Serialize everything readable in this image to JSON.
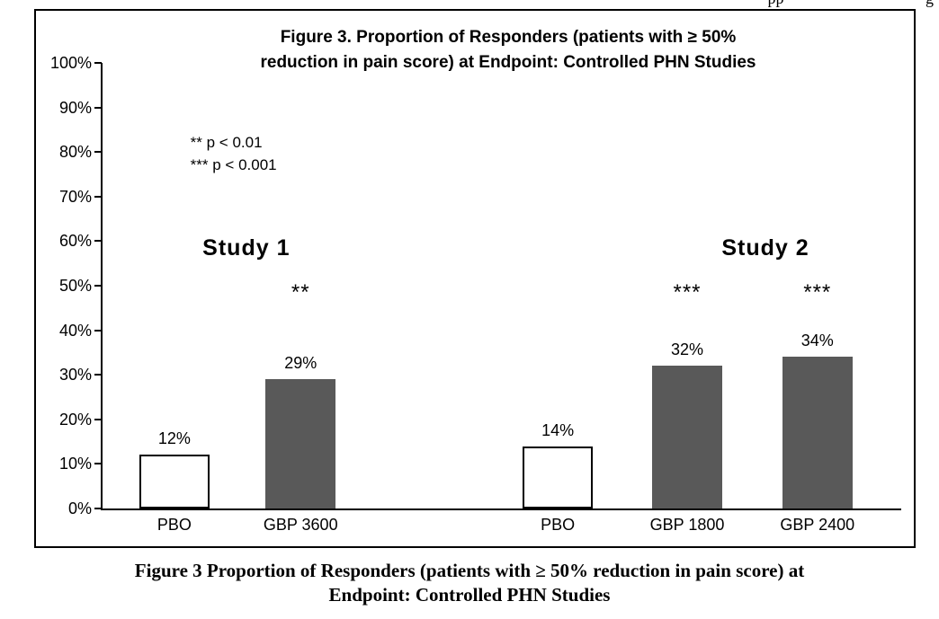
{
  "page": {
    "header_fragment": "pp                                   g"
  },
  "chart": {
    "title_line1": "Figure 3. Proportion of Responders (patients with ≥ 50%",
    "title_line2": "reduction in pain score) at Endpoint: Controlled PHN Studies",
    "sig_note_1": "** p < 0.01",
    "sig_note_2": "*** p < 0.001",
    "group_label_1": "Study 1",
    "group_label_2": "Study 2"
  },
  "chart_data": {
    "type": "bar",
    "title": "Figure 3. Proportion of Responders (patients with ≥ 50% reduction in pain score) at Endpoint: Controlled PHN Studies",
    "categories": [
      "PBO",
      "GBP 3600",
      "PBO",
      "GBP 1800",
      "GBP 2400"
    ],
    "values": [
      12,
      29,
      14,
      32,
      34
    ],
    "value_labels": [
      "12%",
      "29%",
      "14%",
      "32%",
      "34%"
    ],
    "significance": [
      "",
      "**",
      "",
      "***",
      "***"
    ],
    "groups": [
      {
        "label": "Study 1",
        "bars": [
          "PBO",
          "GBP 3600"
        ]
      },
      {
        "label": "Study 2",
        "bars": [
          "PBO",
          "GBP 1800",
          "GBP 2400"
        ]
      }
    ],
    "annotations": [
      "** p < 0.01",
      "*** p < 0.001"
    ],
    "ylim": [
      0,
      100
    ],
    "ytick_step": 10,
    "ytick_labels": [
      "0%",
      "10%",
      "20%",
      "30%",
      "40%",
      "50%",
      "60%",
      "70%",
      "80%",
      "90%",
      "100%"
    ],
    "bar_colors": [
      "#ffffff",
      "#595959",
      "#ffffff",
      "#595959",
      "#595959"
    ],
    "bar_border_colors": [
      "#000000",
      "#595959",
      "#000000",
      "#595959",
      "#595959"
    ],
    "grid": false,
    "legend_position": "none"
  },
  "caption": {
    "line1": "Figure 3 Proportion of Responders (patients with ≥ 50% reduction in pain score) at",
    "line2": "Endpoint: Controlled PHN Studies"
  }
}
